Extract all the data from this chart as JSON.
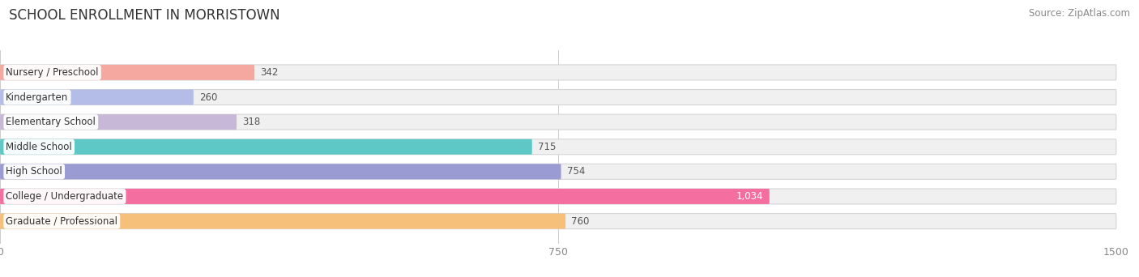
{
  "title": "SCHOOL ENROLLMENT IN MORRISTOWN",
  "source": "Source: ZipAtlas.com",
  "categories": [
    "Nursery / Preschool",
    "Kindergarten",
    "Elementary School",
    "Middle School",
    "High School",
    "College / Undergraduate",
    "Graduate / Professional"
  ],
  "values": [
    342,
    260,
    318,
    715,
    754,
    1034,
    760
  ],
  "bar_colors": [
    "#f4a8a0",
    "#b3bde8",
    "#c8b8d8",
    "#5dc8c5",
    "#9b9bd4",
    "#f46fa0",
    "#f7c07a"
  ],
  "bar_bg_color": "#f0f0f0",
  "bar_border_color": "#e0e0e0",
  "label_bg_color": "#ffffff",
  "xlim_max": 1500,
  "xticks": [
    0,
    750,
    1500
  ],
  "title_fontsize": 12,
  "source_fontsize": 8.5,
  "label_fontsize": 8.5,
  "value_fontsize": 8.5,
  "background_color": "#ffffff",
  "value_inside_bar_color": "#ffffff",
  "value_outside_bar_color": "#555555"
}
